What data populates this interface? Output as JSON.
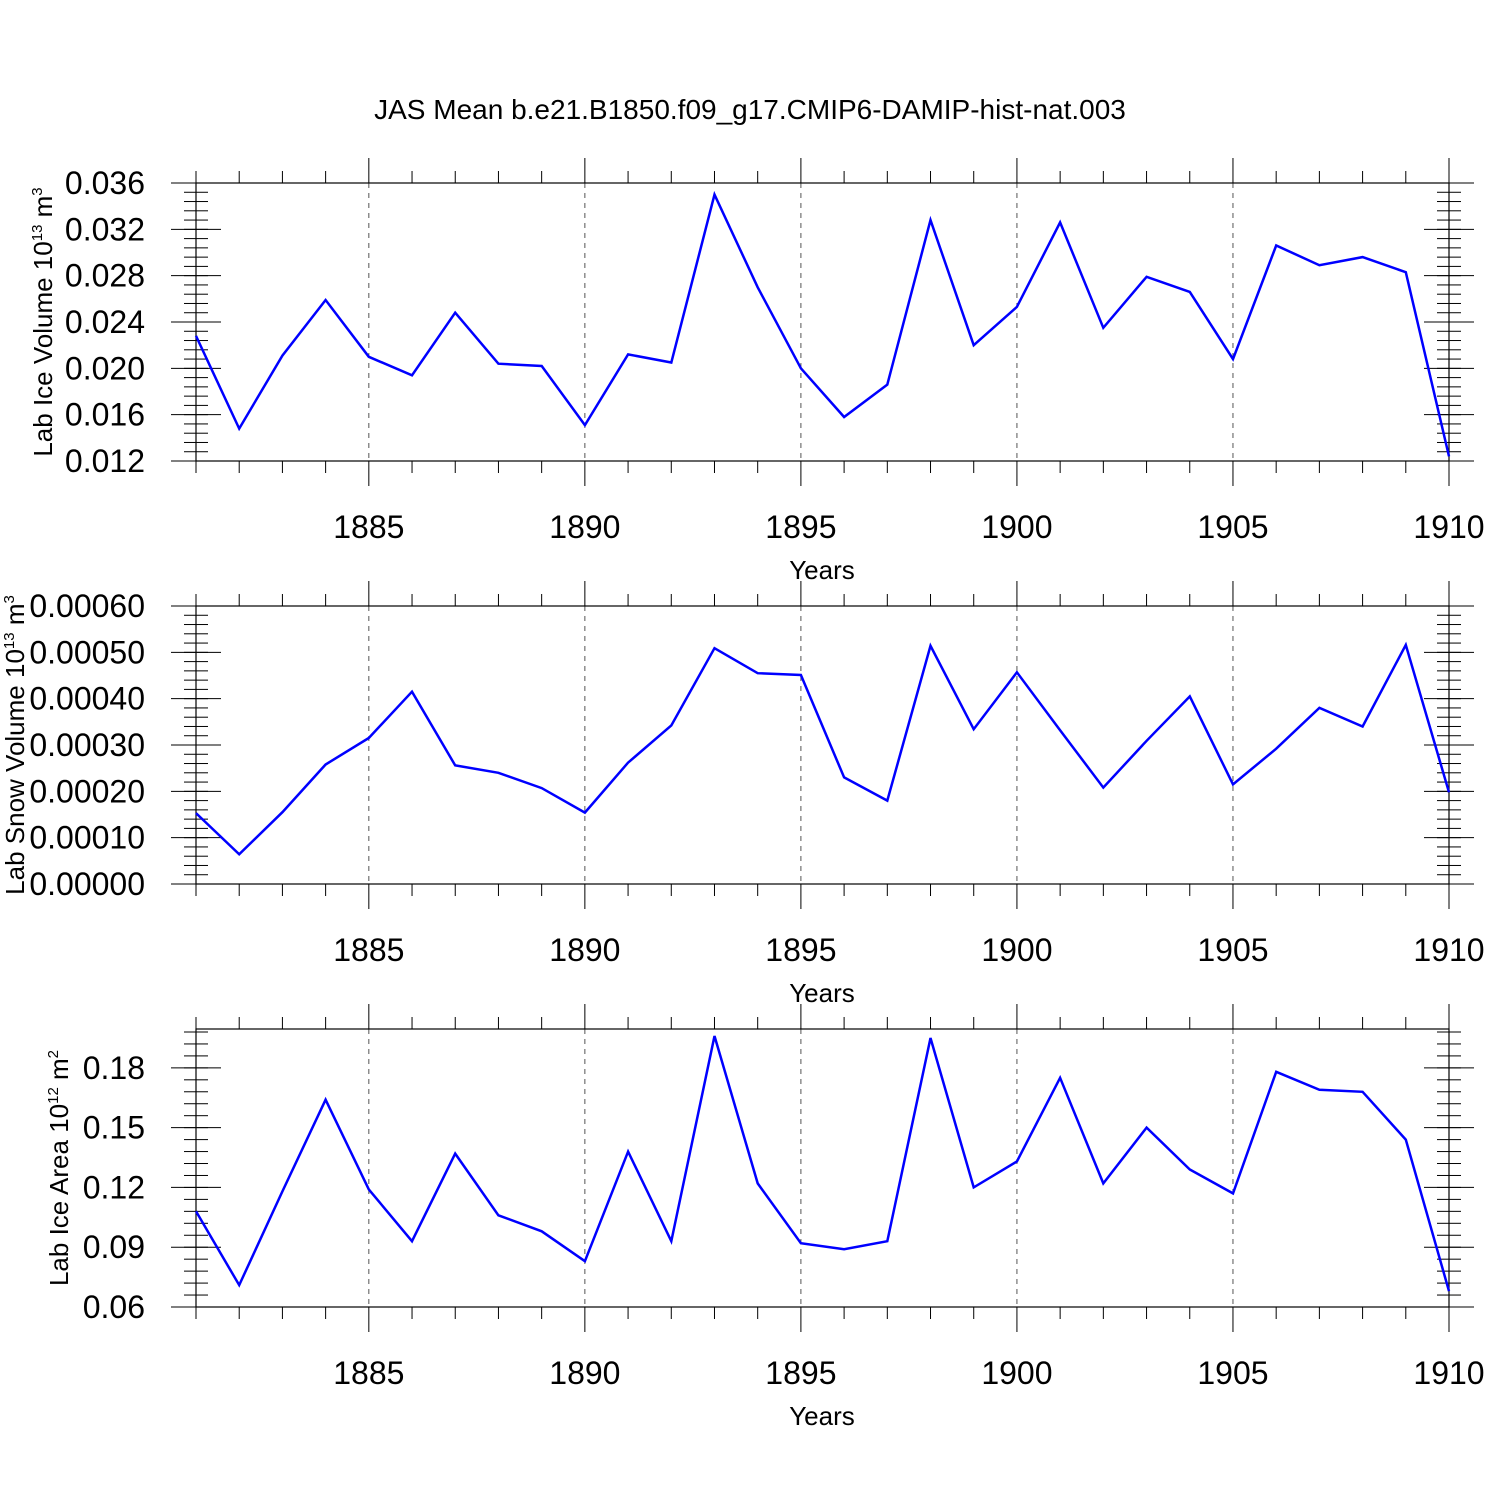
{
  "title": "JAS Mean b.e21.B1850.f09_g17.CMIP6-DAMIP-hist-nat.003",
  "chart_data": [
    {
      "type": "line",
      "ylabel": "Lab Ice Volume 10",
      "ylabel_sup": "13",
      "ylabel_unit": " m",
      "ylabel_unit_sup": "3",
      "xlabel": "Years",
      "xlim": [
        1881,
        1910
      ],
      "ylim": [
        0.012,
        0.036
      ],
      "xticks": [
        1885,
        1890,
        1895,
        1900,
        1905,
        1910
      ],
      "yticks": [
        "0.012",
        "0.016",
        "0.020",
        "0.024",
        "0.028",
        "0.032",
        "0.036"
      ],
      "grid": "vertical dashed at major x ticks",
      "color": "#0000ff",
      "x": [
        1881,
        1882,
        1883,
        1884,
        1885,
        1886,
        1887,
        1888,
        1889,
        1890,
        1891,
        1892,
        1893,
        1894,
        1895,
        1896,
        1897,
        1898,
        1899,
        1900,
        1901,
        1902,
        1903,
        1904,
        1905,
        1906,
        1907,
        1908,
        1909,
        1910
      ],
      "values": [
        0.0228,
        0.0148,
        0.0211,
        0.0259,
        0.021,
        0.0194,
        0.0248,
        0.0204,
        0.0202,
        0.0151,
        0.0212,
        0.0205,
        0.035,
        0.027,
        0.02,
        0.0158,
        0.0186,
        0.0328,
        0.022,
        0.0253,
        0.0326,
        0.0235,
        0.0279,
        0.0266,
        0.0208,
        0.0306,
        0.0289,
        0.0296,
        0.0283,
        0.0124
      ]
    },
    {
      "type": "line",
      "ylabel": "Lab Snow Volume 10",
      "ylabel_sup": "13",
      "ylabel_unit": " m",
      "ylabel_unit_sup": "3",
      "xlabel": "Years",
      "xlim": [
        1881,
        1910
      ],
      "ylim": [
        0.0,
        0.0006
      ],
      "xticks": [
        1885,
        1890,
        1895,
        1900,
        1905,
        1910
      ],
      "yticks": [
        "0.00000",
        "0.00010",
        "0.00020",
        "0.00030",
        "0.00040",
        "0.00050",
        "0.00060"
      ],
      "grid": "vertical dashed at major x ticks",
      "color": "#0000ff",
      "x": [
        1881,
        1882,
        1883,
        1884,
        1885,
        1886,
        1887,
        1888,
        1889,
        1890,
        1891,
        1892,
        1893,
        1894,
        1895,
        1896,
        1897,
        1898,
        1899,
        1900,
        1901,
        1902,
        1903,
        1904,
        1905,
        1906,
        1907,
        1908,
        1909,
        1910
      ],
      "values": [
        0.000153,
        6.4e-05,
        0.000155,
        0.000258,
        0.000315,
        0.000415,
        0.000256,
        0.00024,
        0.000207,
        0.000154,
        0.000262,
        0.000342,
        0.000509,
        0.000455,
        0.000451,
        0.00023,
        0.00018,
        0.000514,
        0.000334,
        0.000457,
        0.000332,
        0.000208,
        0.000309,
        0.000405,
        0.000215,
        0.000292,
        0.00038,
        0.00034,
        0.000516,
        0.000198
      ]
    },
    {
      "type": "line",
      "ylabel": "Lab Ice Area 10",
      "ylabel_sup": "12",
      "ylabel_unit": " m",
      "ylabel_unit_sup": "2",
      "xlabel": "Years",
      "xlim": [
        1881,
        1910
      ],
      "ylim": [
        0.06,
        0.1995
      ],
      "xticks": [
        1885,
        1890,
        1895,
        1900,
        1905,
        1910
      ],
      "yticks": [
        "0.06",
        "0.09",
        "0.12",
        "0.15",
        "0.18"
      ],
      "ytick_values": [
        0.06,
        0.09,
        0.12,
        0.15,
        0.18
      ],
      "grid": "vertical dashed at major x ticks",
      "color": "#0000ff",
      "x": [
        1881,
        1882,
        1883,
        1884,
        1885,
        1886,
        1887,
        1888,
        1889,
        1890,
        1891,
        1892,
        1893,
        1894,
        1895,
        1896,
        1897,
        1898,
        1899,
        1900,
        1901,
        1902,
        1903,
        1904,
        1905,
        1906,
        1907,
        1908,
        1909,
        1910
      ],
      "values": [
        0.108,
        0.071,
        0.118,
        0.164,
        0.119,
        0.093,
        0.137,
        0.106,
        0.098,
        0.083,
        0.138,
        0.093,
        0.196,
        0.122,
        0.092,
        0.089,
        0.093,
        0.195,
        0.12,
        0.133,
        0.175,
        0.122,
        0.15,
        0.129,
        0.117,
        0.178,
        0.169,
        0.168,
        0.144,
        0.068
      ]
    }
  ]
}
